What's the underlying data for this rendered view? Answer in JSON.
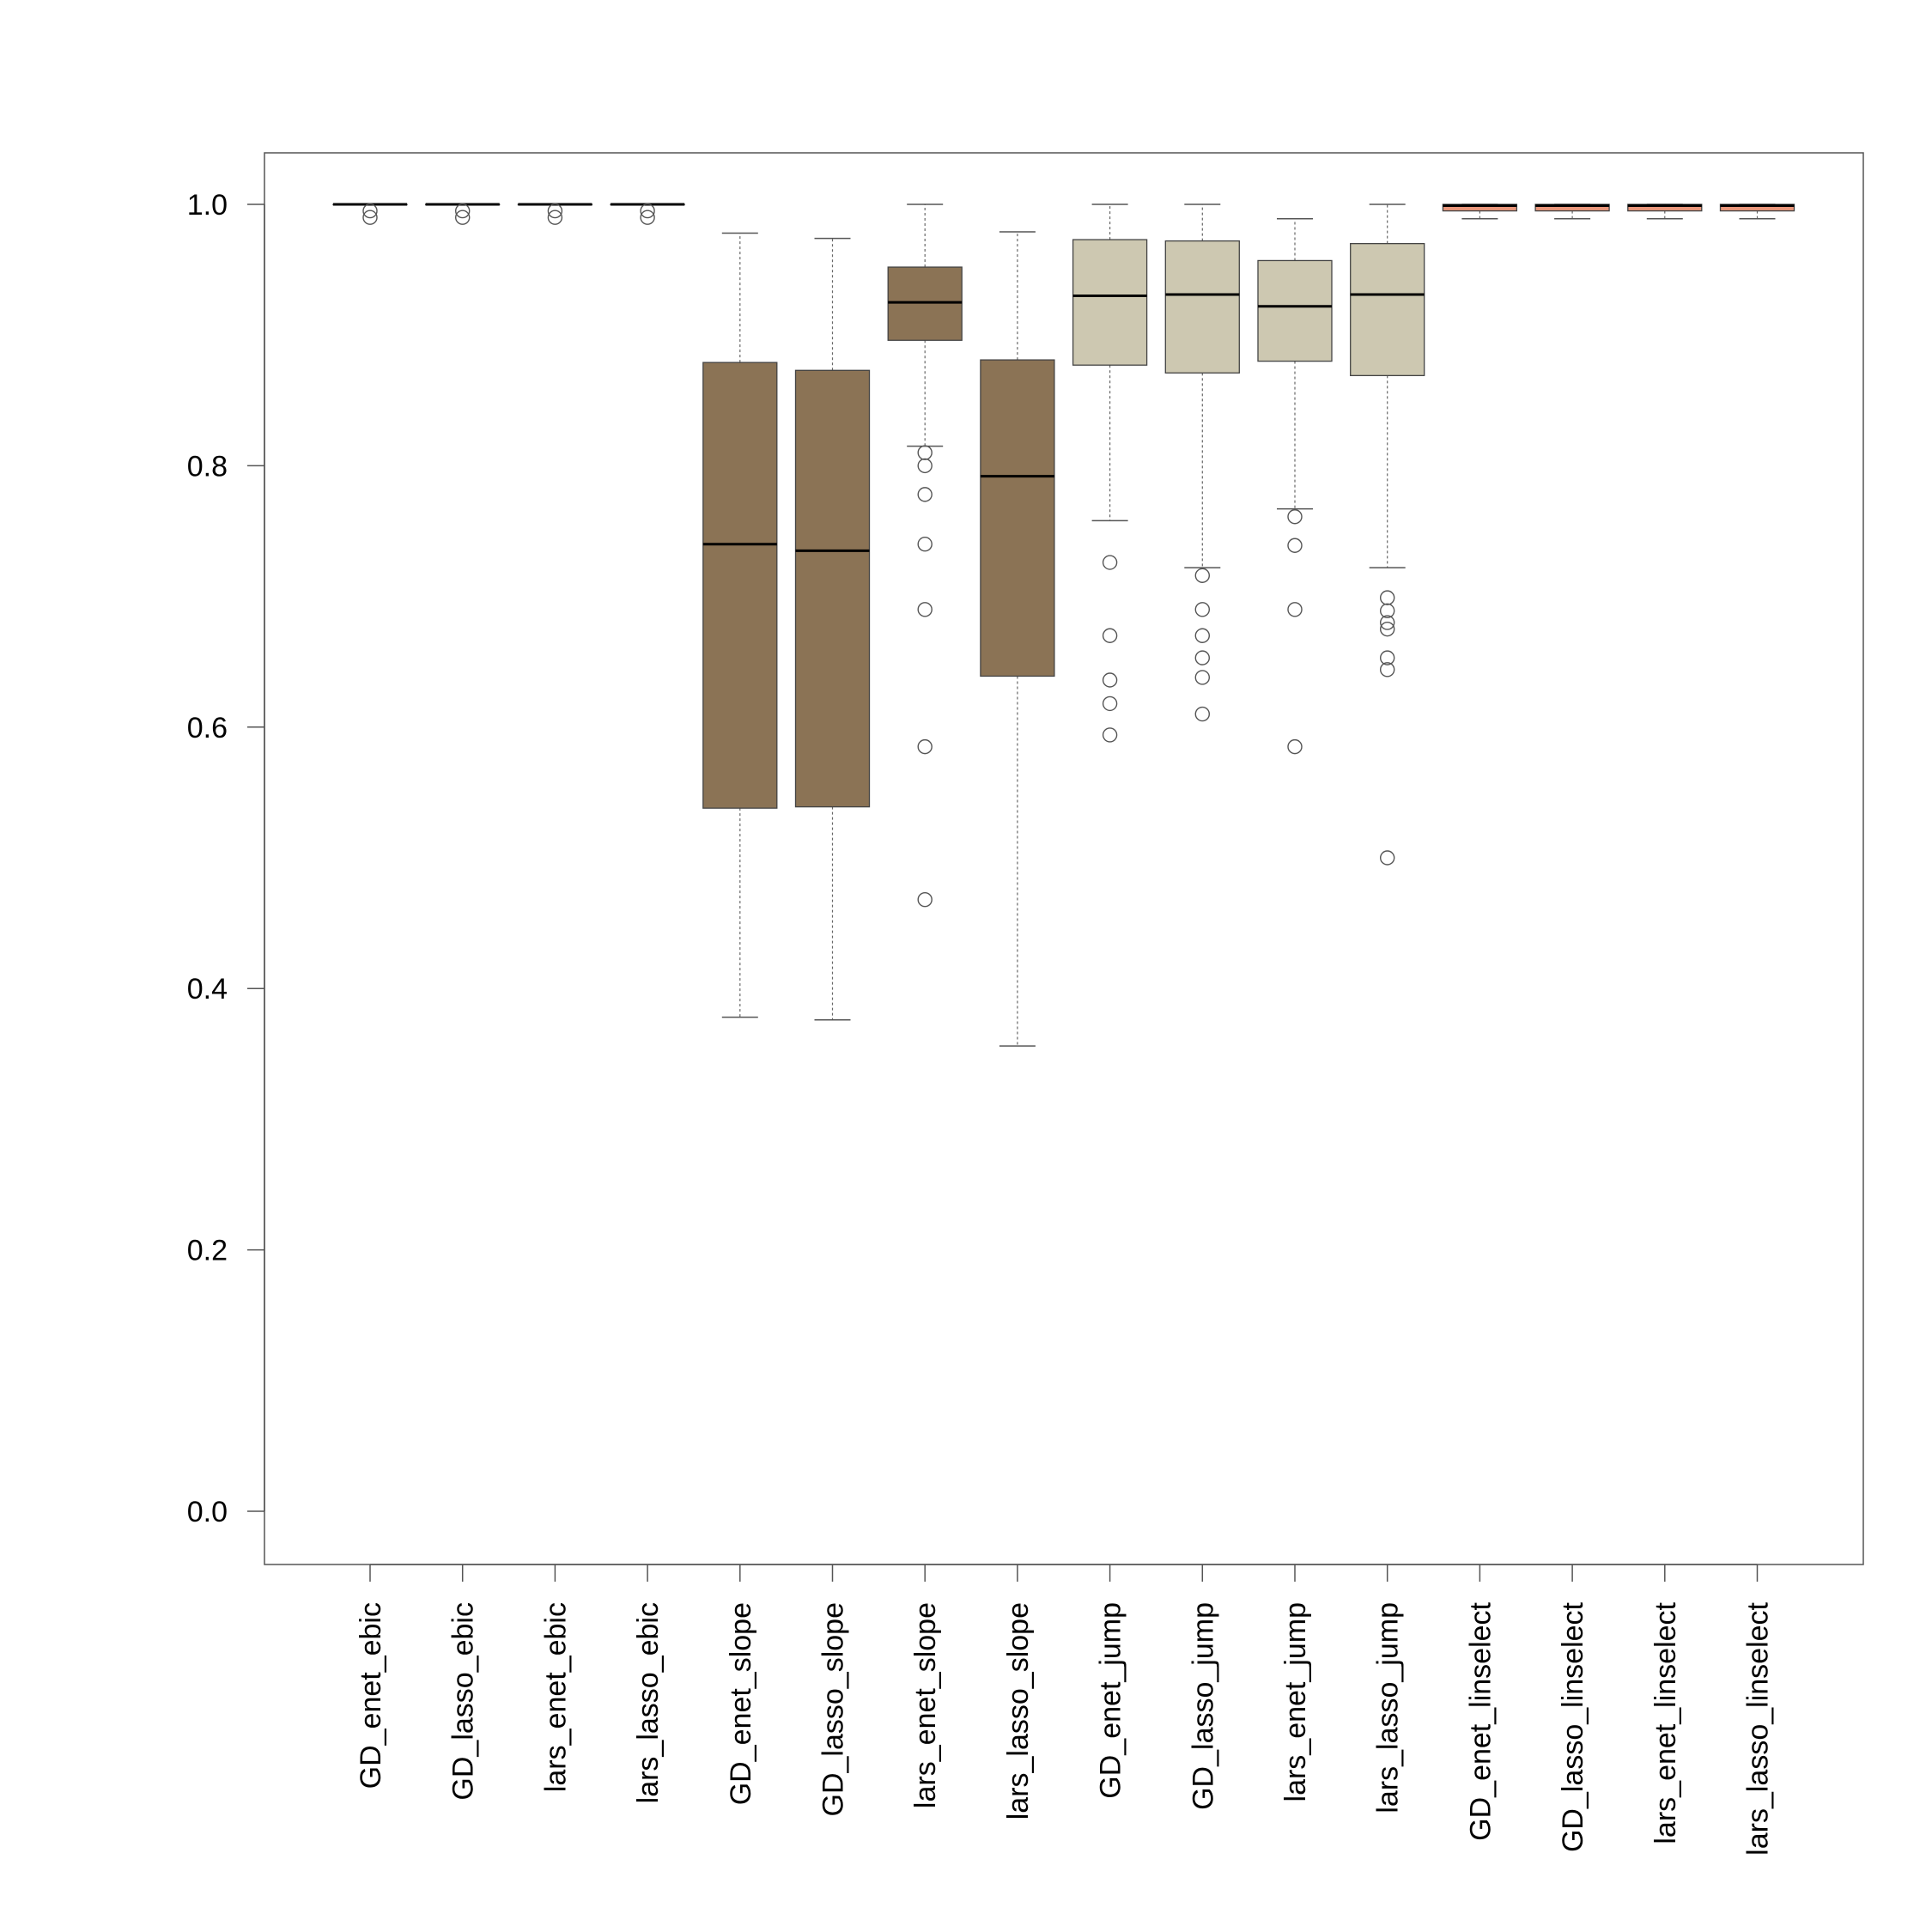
{
  "chart_data": {
    "type": "boxplot",
    "title": "",
    "xlabel": "",
    "ylabel": "",
    "ylim": [
      -0.04,
      1.04
    ],
    "yticks": [
      0.0,
      0.2,
      0.4,
      0.6,
      0.8,
      1.0
    ],
    "ytick_labels": [
      "0.0",
      "0.2",
      "0.4",
      "0.6",
      "0.8",
      "1.0"
    ],
    "grid": false,
    "legend": "none",
    "categories": [
      "GD_enet_ebic",
      "GD_lasso_ebic",
      "lars_enet_ebic",
      "lars_lasso_ebic",
      "GD_enet_slope",
      "GD_lasso_slope",
      "lars_enet_slope",
      "lars_lasso_slope",
      "GD_enet_jump",
      "GD_lasso_jump",
      "lars_enet_jump",
      "lars_lasso_jump",
      "GD_enet_linselect",
      "GD_lasso_linselect",
      "lars_enet_linselect",
      "lars_lasso_linselect"
    ],
    "boxes": [
      {
        "whisker_low": 1.0,
        "q1": 1.0,
        "median": 1.0,
        "q3": 1.0,
        "whisker_high": 1.0,
        "outliers": [
          0.99,
          0.995
        ],
        "color": "#8b7355"
      },
      {
        "whisker_low": 1.0,
        "q1": 1.0,
        "median": 1.0,
        "q3": 1.0,
        "whisker_high": 1.0,
        "outliers": [
          0.99,
          0.995
        ],
        "color": "#8b7355"
      },
      {
        "whisker_low": 1.0,
        "q1": 1.0,
        "median": 1.0,
        "q3": 1.0,
        "whisker_high": 1.0,
        "outliers": [
          0.99,
          0.995
        ],
        "color": "#8b7355"
      },
      {
        "whisker_low": 1.0,
        "q1": 1.0,
        "median": 1.0,
        "q3": 1.0,
        "whisker_high": 1.0,
        "outliers": [
          0.99,
          0.995
        ],
        "color": "#8b7355"
      },
      {
        "whisker_low": 0.378,
        "q1": 0.538,
        "median": 0.74,
        "q3": 0.879,
        "whisker_high": 0.978,
        "outliers": [],
        "color": "#8b7355"
      },
      {
        "whisker_low": 0.376,
        "q1": 0.539,
        "median": 0.735,
        "q3": 0.873,
        "whisker_high": 0.974,
        "outliers": [],
        "color": "#8b7355"
      },
      {
        "whisker_low": 0.815,
        "q1": 0.896,
        "median": 0.925,
        "q3": 0.952,
        "whisker_high": 1.0,
        "outliers": [
          0.81,
          0.8,
          0.778,
          0.74,
          0.69,
          0.585,
          0.468
        ],
        "color": "#8b7355"
      },
      {
        "whisker_low": 0.356,
        "q1": 0.639,
        "median": 0.792,
        "q3": 0.881,
        "whisker_high": 0.979,
        "outliers": [],
        "color": "#8b7355"
      },
      {
        "whisker_low": 0.758,
        "q1": 0.877,
        "median": 0.93,
        "q3": 0.973,
        "whisker_high": 1.0,
        "outliers": [
          0.726,
          0.67,
          0.636,
          0.618,
          0.594
        ],
        "color": "#cdc8b1"
      },
      {
        "whisker_low": 0.722,
        "q1": 0.871,
        "median": 0.931,
        "q3": 0.972,
        "whisker_high": 1.0,
        "outliers": [
          0.716,
          0.69,
          0.67,
          0.653,
          0.638,
          0.61
        ],
        "color": "#cdc8b1"
      },
      {
        "whisker_low": 0.767,
        "q1": 0.88,
        "median": 0.922,
        "q3": 0.957,
        "whisker_high": 0.989,
        "outliers": [
          0.761,
          0.739,
          0.69,
          0.585
        ],
        "color": "#cdc8b1"
      },
      {
        "whisker_low": 0.722,
        "q1": 0.869,
        "median": 0.931,
        "q3": 0.97,
        "whisker_high": 1.0,
        "outliers": [
          0.699,
          0.689,
          0.68,
          0.675,
          0.653,
          0.644,
          0.5
        ],
        "color": "#cdc8b1"
      },
      {
        "whisker_low": 0.989,
        "q1": 0.995,
        "median": 0.999,
        "q3": 1.0,
        "whisker_high": 1.0,
        "outliers": [],
        "color": "#e9967a"
      },
      {
        "whisker_low": 0.989,
        "q1": 0.995,
        "median": 0.999,
        "q3": 1.0,
        "whisker_high": 1.0,
        "outliers": [],
        "color": "#e9967a"
      },
      {
        "whisker_low": 0.989,
        "q1": 0.995,
        "median": 0.999,
        "q3": 1.0,
        "whisker_high": 1.0,
        "outliers": [],
        "color": "#e9967a"
      },
      {
        "whisker_low": 0.989,
        "q1": 0.995,
        "median": 0.999,
        "q3": 1.0,
        "whisker_high": 1.0,
        "outliers": [],
        "color": "#e9967a"
      }
    ]
  }
}
